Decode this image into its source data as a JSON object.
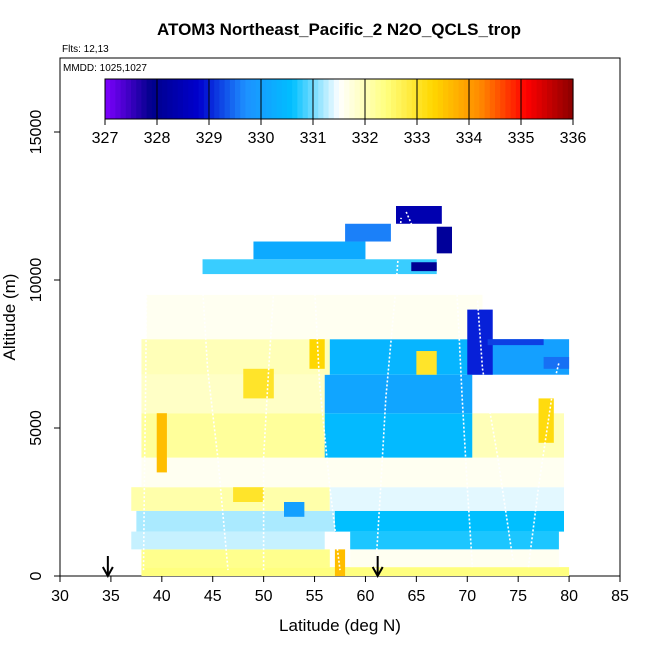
{
  "chart_data": {
    "type": "heatmap",
    "title": "ATOM3 Northeast_Pacific_2 N2O_QCLS_trop",
    "flights_note": "Flts: 12,13",
    "dates_note": "MMDD: 1025,1027",
    "xlabel": "Latitude (deg N)",
    "ylabel": "Altitude (m)",
    "xlim": [
      30,
      85
    ],
    "ylim": [
      0,
      17500
    ],
    "x_ticks": [
      "30",
      "35",
      "40",
      "45",
      "50",
      "55",
      "60",
      "65",
      "70",
      "75",
      "80",
      "85"
    ],
    "y_ticks": [
      "0",
      "5000",
      "10000",
      "15000"
    ],
    "colorbar": {
      "min": 327,
      "max": 336,
      "tick_labels": [
        "327",
        "328",
        "329",
        "330",
        "331",
        "332",
        "333",
        "334",
        "335",
        "336"
      ],
      "colors": [
        "#7f00ff",
        "#00008b",
        "#0000cd",
        "#1e90ff",
        "#00bfff",
        "#ffffff",
        "#ffff7f",
        "#ffd700",
        "#ff8c00",
        "#ff0000",
        "#8b0000"
      ]
    },
    "markers": [
      {
        "label": "arrow-down",
        "x": 34.7
      },
      {
        "label": "arrow-down",
        "x": 61.2
      }
    ],
    "blocks": [
      {
        "x": [
          38.0,
          80.0
        ],
        "y": [
          0,
          300
        ],
        "v": 332.4
      },
      {
        "x": [
          57.0,
          58.0
        ],
        "y": [
          0,
          900
        ],
        "v": 333.6
      },
      {
        "x": [
          38.0,
          56.5
        ],
        "y": [
          300,
          900
        ],
        "v": 332.3
      },
      {
        "x": [
          58.5,
          79.0
        ],
        "y": [
          300,
          900
        ],
        "v": 331.6
      },
      {
        "x": [
          37.0,
          56.0
        ],
        "y": [
          900,
          1500
        ],
        "v": 331.3
      },
      {
        "x": [
          58.5,
          79.0
        ],
        "y": [
          900,
          1500
        ],
        "v": 330.7
      },
      {
        "x": [
          37.5,
          57.0
        ],
        "y": [
          1500,
          2200
        ],
        "v": 331.2
      },
      {
        "x": [
          57.0,
          79.5
        ],
        "y": [
          1500,
          2200
        ],
        "v": 330.6
      },
      {
        "x": [
          37.0,
          56.5
        ],
        "y": [
          2200,
          3000
        ],
        "v": 332.1
      },
      {
        "x": [
          56.5,
          79.5
        ],
        "y": [
          2200,
          3000
        ],
        "v": 331.4
      },
      {
        "x": [
          38.0,
          79.5
        ],
        "y": [
          3000,
          4000
        ],
        "v": 331.6
      },
      {
        "x": [
          38.0,
          56.0
        ],
        "y": [
          4000,
          5500
        ],
        "v": 332.2
      },
      {
        "x": [
          56.0,
          70.5
        ],
        "y": [
          4000,
          5500
        ],
        "v": 330.5
      },
      {
        "x": [
          70.5,
          79.5
        ],
        "y": [
          4000,
          5500
        ],
        "v": 332.0
      },
      {
        "x": [
          38.0,
          56.0
        ],
        "y": [
          5500,
          6800
        ],
        "v": 331.9
      },
      {
        "x": [
          56.0,
          70.5
        ],
        "y": [
          5500,
          6800
        ],
        "v": 330.1
      },
      {
        "x": [
          70.5,
          80.0
        ],
        "y": [
          5500,
          6800
        ],
        "v": 331.5
      },
      {
        "x": [
          38.0,
          56.5
        ],
        "y": [
          6800,
          8000
        ],
        "v": 332.0
      },
      {
        "x": [
          56.5,
          70.5
        ],
        "y": [
          6800,
          8000
        ],
        "v": 330.4
      },
      {
        "x": [
          70.5,
          80.0
        ],
        "y": [
          6800,
          8000
        ],
        "v": 330.0
      },
      {
        "x": [
          38.5,
          71.5
        ],
        "y": [
          8000,
          9500
        ],
        "v": 331.6
      },
      {
        "x": [
          38.5,
          70.5
        ],
        "y": [
          9500,
          10200
        ],
        "v": 331.5
      },
      {
        "x": [
          44.0,
          67.0
        ],
        "y": [
          10200,
          10700
        ],
        "v": 330.8
      },
      {
        "x": [
          49.0,
          60.0
        ],
        "y": [
          10700,
          11300
        ],
        "v": 330.2
      },
      {
        "x": [
          58.0,
          62.5
        ],
        "y": [
          11300,
          11900
        ],
        "v": 329.6
      },
      {
        "x": [
          63.0,
          67.5
        ],
        "y": [
          11900,
          12500
        ],
        "v": 328.4
      },
      {
        "x": [
          67.0,
          68.5
        ],
        "y": [
          10900,
          11800
        ],
        "v": 328.1
      },
      {
        "x": [
          64.5,
          67.0
        ],
        "y": [
          10300,
          10600
        ],
        "v": 328.0
      },
      {
        "x": [
          70.0,
          72.5
        ],
        "y": [
          6800,
          9000
        ],
        "v": 329.0
      },
      {
        "x": [
          72.0,
          77.5
        ],
        "y": [
          7800,
          8000
        ],
        "v": 329.2
      },
      {
        "x": [
          77.5,
          80.0
        ],
        "y": [
          7000,
          7400
        ],
        "v": 329.5
      },
      {
        "x": [
          52.0,
          54.0
        ],
        "y": [
          2000,
          2500
        ],
        "v": 330.0
      },
      {
        "x": [
          47.0,
          50.0
        ],
        "y": [
          2500,
          3000
        ],
        "v": 333.0
      },
      {
        "x": [
          54.5,
          56.0
        ],
        "y": [
          7000,
          8000
        ],
        "v": 333.3
      },
      {
        "x": [
          48.0,
          51.0
        ],
        "y": [
          6000,
          7000
        ],
        "v": 333.0
      },
      {
        "x": [
          65.0,
          67.0
        ],
        "y": [
          6800,
          7600
        ],
        "v": 333.0
      },
      {
        "x": [
          39.5,
          40.5
        ],
        "y": [
          3500,
          5500
        ],
        "v": 333.6
      },
      {
        "x": [
          77.0,
          78.5
        ],
        "y": [
          4500,
          6000
        ],
        "v": 333.2
      }
    ],
    "flight_tracks": [
      [
        [
          38.2,
          200
        ],
        [
          38.3,
          3500
        ],
        [
          38.4,
          6000
        ],
        [
          38.5,
          9500
        ]
      ],
      [
        [
          44.0,
          9800
        ],
        [
          44.5,
          7000
        ],
        [
          45.5,
          4000
        ],
        [
          46.5,
          200
        ]
      ],
      [
        [
          50.0,
          200
        ],
        [
          50.0,
          4000
        ],
        [
          50.5,
          7000
        ],
        [
          51.0,
          9700
        ]
      ],
      [
        [
          55.0,
          9800
        ],
        [
          55.5,
          6500
        ],
        [
          56.5,
          3000
        ],
        [
          57.5,
          200
        ]
      ],
      [
        [
          61.0,
          200
        ],
        [
          61.5,
          3000
        ],
        [
          62.0,
          6000
        ],
        [
          63.0,
          9800
        ],
        [
          63.5,
          12100
        ]
      ],
      [
        [
          64.0,
          12300
        ],
        [
          65.0,
          11500
        ],
        [
          66.5,
          10800
        ]
      ],
      [
        [
          69.0,
          9500
        ],
        [
          69.5,
          6000
        ],
        [
          70.0,
          3000
        ],
        [
          70.5,
          300
        ]
      ],
      [
        [
          71.0,
          9300
        ],
        [
          71.5,
          7000
        ],
        [
          73.0,
          4000
        ],
        [
          74.5,
          500
        ]
      ],
      [
        [
          76.0,
          300
        ],
        [
          77.0,
          3000
        ],
        [
          78.5,
          6500
        ],
        [
          79.0,
          7200
        ]
      ]
    ]
  }
}
